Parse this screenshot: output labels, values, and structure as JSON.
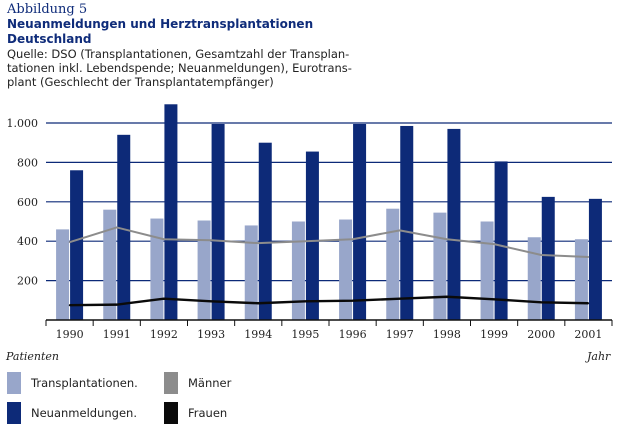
{
  "header": {
    "label": "Abbildung 5",
    "title": "Neuanmeldungen und Herztransplantationen Deutschland",
    "source_lines": [
      "Quelle: DSO (Transplantationen, Gesamtzahl der Transplan-",
      "tationen inkl. Lebendspende;  Neuanmeldungen), Eurotrans-",
      "plant (Geschlecht der Transplantatempfänger)"
    ]
  },
  "colors": {
    "transplant": "#98a6ca",
    "registration": "#0d2a78",
    "men": "#8c8c8c",
    "women": "#0a0a0a",
    "grid": "#0d2a78"
  },
  "chart_data": {
    "type": "bar",
    "categories": [
      "1990",
      "1991",
      "1992",
      "1993",
      "1994",
      "1995",
      "1996",
      "1997",
      "1998",
      "1999",
      "2000",
      "2001"
    ],
    "ylim": [
      0,
      1000
    ],
    "yticks": [
      200,
      400,
      600,
      800,
      1000
    ],
    "ytick_labels": [
      "200",
      "400",
      "600",
      "800",
      "1.000"
    ],
    "grid": true,
    "xlabel": "Jahr",
    "ylabel": "Patienten",
    "series": [
      {
        "name": "Transplantationen",
        "kind": "bar",
        "values": [
          460,
          560,
          515,
          505,
          480,
          500,
          510,
          565,
          545,
          500,
          420,
          410
        ]
      },
      {
        "name": "Neuanmeldungen",
        "kind": "bar",
        "values": [
          760,
          940,
          1095,
          995,
          900,
          855,
          995,
          985,
          970,
          805,
          625,
          615
        ]
      },
      {
        "name": "Männer",
        "kind": "line",
        "values": [
          395,
          470,
          410,
          405,
          390,
          400,
          410,
          455,
          410,
          385,
          330,
          320
        ]
      },
      {
        "name": "Frauen",
        "kind": "line",
        "values": [
          75,
          78,
          108,
          95,
          85,
          95,
          98,
          108,
          118,
          105,
          90,
          85
        ]
      }
    ]
  },
  "legend": [
    {
      "label": "Transplantationen.",
      "color_key": "transplant"
    },
    {
      "label": "Neuanmeldungen.",
      "color_key": "registration"
    },
    {
      "label": "Männer",
      "color_key": "men"
    },
    {
      "label": "Frauen",
      "color_key": "women"
    }
  ]
}
